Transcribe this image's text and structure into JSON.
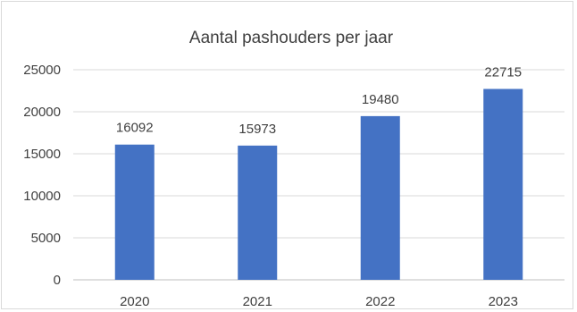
{
  "chart_data": {
    "type": "bar",
    "title": "Aantal pashouders per jaar",
    "categories": [
      "2020",
      "2021",
      "2022",
      "2023"
    ],
    "values": [
      16092,
      15973,
      19480,
      22715
    ],
    "data_labels": [
      "16092",
      "15973",
      "19480",
      "22715"
    ],
    "y_ticks": [
      "0",
      "5000",
      "10000",
      "15000",
      "20000",
      "25000"
    ],
    "ylim": [
      0,
      25000
    ],
    "xlabel": "",
    "ylabel": "",
    "grid": true,
    "legend": "none",
    "bar_color": "#4472c4"
  }
}
